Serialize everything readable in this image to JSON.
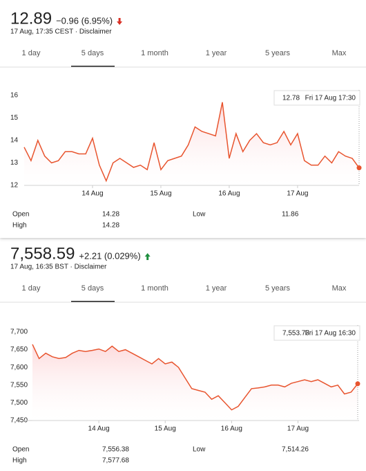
{
  "widgets": [
    {
      "price": "12.89",
      "change": "−0.96 (6.95%)",
      "time": "17 Aug, 17:35 CEST · Disclaimer",
      "tabs": [
        "1 day",
        "5 days",
        "1 month",
        "1 year",
        "5 years",
        "Max"
      ],
      "stats": {
        "open_label": "Open",
        "open": "14.28",
        "high_label": "High",
        "high": "14.28",
        "low_label": "Low",
        "low": "11.86"
      }
    },
    {
      "price": "7,558.59",
      "change": "+2.21 (0.029%)",
      "time": "17 Aug, 16:35 BST · Disclaimer",
      "tabs": [
        "1 day",
        "5 days",
        "1 month",
        "1 year",
        "5 years",
        "Max"
      ],
      "stats": {
        "open_label": "Open",
        "open": "7,556.38",
        "high_label": "High",
        "high": "7,577.68",
        "low_label": "Low",
        "low": "7,514.26"
      }
    }
  ],
  "chart_data": [
    {
      "type": "line",
      "color": "#e8542e",
      "categories": [
        null,
        null,
        null,
        null,
        null,
        null,
        null,
        null,
        null,
        null,
        "14 Aug",
        null,
        null,
        null,
        null,
        null,
        null,
        null,
        null,
        null,
        "15 Aug",
        null,
        null,
        null,
        null,
        null,
        null,
        null,
        null,
        null,
        "16 Aug",
        null,
        null,
        null,
        null,
        null,
        null,
        null,
        null,
        null,
        "17 Aug",
        null,
        null,
        null,
        null,
        null,
        null,
        null,
        null,
        null
      ],
      "values": [
        13.7,
        13.1,
        14.0,
        13.3,
        13.0,
        13.1,
        13.5,
        13.5,
        13.4,
        13.4,
        14.1,
        12.9,
        12.2,
        13.0,
        13.2,
        13.0,
        12.8,
        12.9,
        12.7,
        13.9,
        12.7,
        13.1,
        13.2,
        13.3,
        13.8,
        14.6,
        14.4,
        14.3,
        14.2,
        15.7,
        13.2,
        14.3,
        13.5,
        14.0,
        14.3,
        13.9,
        13.8,
        13.9,
        14.4,
        13.8,
        14.3,
        13.1,
        12.9,
        12.9,
        13.3,
        13.0,
        13.5,
        13.3,
        13.2,
        12.78
      ],
      "ylim": [
        12,
        16
      ],
      "yticks": [
        12,
        13,
        14,
        15,
        16
      ],
      "grid": false,
      "annotation": {
        "value": "12.78",
        "time": "Fri 17 Aug 17:30"
      }
    },
    {
      "type": "line",
      "color": "#e8542e",
      "categories": [
        null,
        null,
        null,
        null,
        null,
        null,
        null,
        null,
        null,
        null,
        "14 Aug",
        null,
        null,
        null,
        null,
        null,
        null,
        null,
        null,
        null,
        "15 Aug",
        null,
        null,
        null,
        null,
        null,
        null,
        null,
        null,
        null,
        "16 Aug",
        null,
        null,
        null,
        null,
        null,
        null,
        null,
        null,
        null,
        "17 Aug",
        null,
        null,
        null,
        null,
        null,
        null,
        null,
        null,
        null
      ],
      "values": [
        7665,
        7625,
        7640,
        7630,
        7625,
        7628,
        7640,
        7648,
        7645,
        7648,
        7652,
        7645,
        7660,
        7645,
        7650,
        7640,
        7630,
        7620,
        7610,
        7625,
        7610,
        7615,
        7600,
        7570,
        7540,
        7535,
        7530,
        7510,
        7520,
        7500,
        7480,
        7490,
        7515,
        7540,
        7542,
        7545,
        7550,
        7550,
        7545,
        7555,
        7560,
        7565,
        7560,
        7565,
        7555,
        7545,
        7550,
        7525,
        7530,
        7553.73
      ],
      "ylim": [
        7450,
        7700
      ],
      "yticks": [
        {
          "value": 7450,
          "label": "7,450"
        },
        {
          "value": 7500,
          "label": "7,500"
        },
        {
          "value": 7550,
          "label": "7,550"
        },
        {
          "value": 7600,
          "label": "7,600"
        },
        {
          "value": 7650,
          "label": "7,650"
        },
        {
          "value": 7700,
          "label": "7,700"
        }
      ],
      "grid": false,
      "annotation": {
        "value": "7,553.73",
        "time": "Fri 17 Aug 16:30"
      }
    }
  ]
}
